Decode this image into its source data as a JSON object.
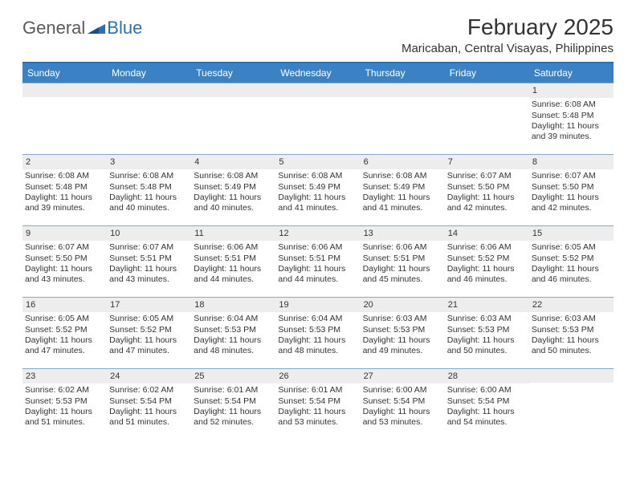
{
  "brand": {
    "general": "General",
    "blue": "Blue"
  },
  "title": "February 2025",
  "location": "Maricaban, Central Visayas, Philippines",
  "colors": {
    "header_bar": "#3b82c4",
    "header_border": "#2d6fb3",
    "row_border": "#8aa9c7",
    "daynum_bg": "#ededed",
    "text": "#333333",
    "logo_gray": "#5a5a5a",
    "logo_blue": "#2d6fb3",
    "background": "#ffffff"
  },
  "dow": [
    "Sunday",
    "Monday",
    "Tuesday",
    "Wednesday",
    "Thursday",
    "Friday",
    "Saturday"
  ],
  "weeks": [
    [
      {
        "n": "",
        "sr": "",
        "ss": "",
        "dl": ""
      },
      {
        "n": "",
        "sr": "",
        "ss": "",
        "dl": ""
      },
      {
        "n": "",
        "sr": "",
        "ss": "",
        "dl": ""
      },
      {
        "n": "",
        "sr": "",
        "ss": "",
        "dl": ""
      },
      {
        "n": "",
        "sr": "",
        "ss": "",
        "dl": ""
      },
      {
        "n": "",
        "sr": "",
        "ss": "",
        "dl": ""
      },
      {
        "n": "1",
        "sr": "Sunrise: 6:08 AM",
        "ss": "Sunset: 5:48 PM",
        "dl": "Daylight: 11 hours and 39 minutes."
      }
    ],
    [
      {
        "n": "2",
        "sr": "Sunrise: 6:08 AM",
        "ss": "Sunset: 5:48 PM",
        "dl": "Daylight: 11 hours and 39 minutes."
      },
      {
        "n": "3",
        "sr": "Sunrise: 6:08 AM",
        "ss": "Sunset: 5:48 PM",
        "dl": "Daylight: 11 hours and 40 minutes."
      },
      {
        "n": "4",
        "sr": "Sunrise: 6:08 AM",
        "ss": "Sunset: 5:49 PM",
        "dl": "Daylight: 11 hours and 40 minutes."
      },
      {
        "n": "5",
        "sr": "Sunrise: 6:08 AM",
        "ss": "Sunset: 5:49 PM",
        "dl": "Daylight: 11 hours and 41 minutes."
      },
      {
        "n": "6",
        "sr": "Sunrise: 6:08 AM",
        "ss": "Sunset: 5:49 PM",
        "dl": "Daylight: 11 hours and 41 minutes."
      },
      {
        "n": "7",
        "sr": "Sunrise: 6:07 AM",
        "ss": "Sunset: 5:50 PM",
        "dl": "Daylight: 11 hours and 42 minutes."
      },
      {
        "n": "8",
        "sr": "Sunrise: 6:07 AM",
        "ss": "Sunset: 5:50 PM",
        "dl": "Daylight: 11 hours and 42 minutes."
      }
    ],
    [
      {
        "n": "9",
        "sr": "Sunrise: 6:07 AM",
        "ss": "Sunset: 5:50 PM",
        "dl": "Daylight: 11 hours and 43 minutes."
      },
      {
        "n": "10",
        "sr": "Sunrise: 6:07 AM",
        "ss": "Sunset: 5:51 PM",
        "dl": "Daylight: 11 hours and 43 minutes."
      },
      {
        "n": "11",
        "sr": "Sunrise: 6:06 AM",
        "ss": "Sunset: 5:51 PM",
        "dl": "Daylight: 11 hours and 44 minutes."
      },
      {
        "n": "12",
        "sr": "Sunrise: 6:06 AM",
        "ss": "Sunset: 5:51 PM",
        "dl": "Daylight: 11 hours and 44 minutes."
      },
      {
        "n": "13",
        "sr": "Sunrise: 6:06 AM",
        "ss": "Sunset: 5:51 PM",
        "dl": "Daylight: 11 hours and 45 minutes."
      },
      {
        "n": "14",
        "sr": "Sunrise: 6:06 AM",
        "ss": "Sunset: 5:52 PM",
        "dl": "Daylight: 11 hours and 46 minutes."
      },
      {
        "n": "15",
        "sr": "Sunrise: 6:05 AM",
        "ss": "Sunset: 5:52 PM",
        "dl": "Daylight: 11 hours and 46 minutes."
      }
    ],
    [
      {
        "n": "16",
        "sr": "Sunrise: 6:05 AM",
        "ss": "Sunset: 5:52 PM",
        "dl": "Daylight: 11 hours and 47 minutes."
      },
      {
        "n": "17",
        "sr": "Sunrise: 6:05 AM",
        "ss": "Sunset: 5:52 PM",
        "dl": "Daylight: 11 hours and 47 minutes."
      },
      {
        "n": "18",
        "sr": "Sunrise: 6:04 AM",
        "ss": "Sunset: 5:53 PM",
        "dl": "Daylight: 11 hours and 48 minutes."
      },
      {
        "n": "19",
        "sr": "Sunrise: 6:04 AM",
        "ss": "Sunset: 5:53 PM",
        "dl": "Daylight: 11 hours and 48 minutes."
      },
      {
        "n": "20",
        "sr": "Sunrise: 6:03 AM",
        "ss": "Sunset: 5:53 PM",
        "dl": "Daylight: 11 hours and 49 minutes."
      },
      {
        "n": "21",
        "sr": "Sunrise: 6:03 AM",
        "ss": "Sunset: 5:53 PM",
        "dl": "Daylight: 11 hours and 50 minutes."
      },
      {
        "n": "22",
        "sr": "Sunrise: 6:03 AM",
        "ss": "Sunset: 5:53 PM",
        "dl": "Daylight: 11 hours and 50 minutes."
      }
    ],
    [
      {
        "n": "23",
        "sr": "Sunrise: 6:02 AM",
        "ss": "Sunset: 5:53 PM",
        "dl": "Daylight: 11 hours and 51 minutes."
      },
      {
        "n": "24",
        "sr": "Sunrise: 6:02 AM",
        "ss": "Sunset: 5:54 PM",
        "dl": "Daylight: 11 hours and 51 minutes."
      },
      {
        "n": "25",
        "sr": "Sunrise: 6:01 AM",
        "ss": "Sunset: 5:54 PM",
        "dl": "Daylight: 11 hours and 52 minutes."
      },
      {
        "n": "26",
        "sr": "Sunrise: 6:01 AM",
        "ss": "Sunset: 5:54 PM",
        "dl": "Daylight: 11 hours and 53 minutes."
      },
      {
        "n": "27",
        "sr": "Sunrise: 6:00 AM",
        "ss": "Sunset: 5:54 PM",
        "dl": "Daylight: 11 hours and 53 minutes."
      },
      {
        "n": "28",
        "sr": "Sunrise: 6:00 AM",
        "ss": "Sunset: 5:54 PM",
        "dl": "Daylight: 11 hours and 54 minutes."
      },
      {
        "n": "",
        "sr": "",
        "ss": "",
        "dl": ""
      }
    ]
  ]
}
